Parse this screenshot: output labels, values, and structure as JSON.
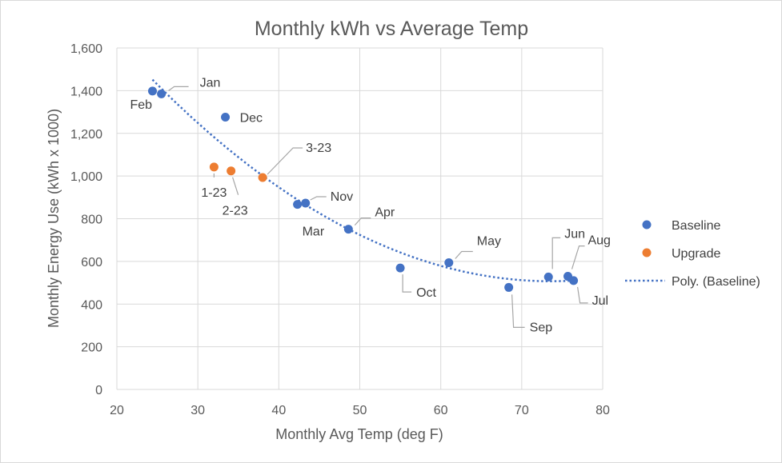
{
  "chart_data": {
    "type": "scatter",
    "title": "Monthly kWh vs Average Temp",
    "xlabel": "Monthly Avg Temp (deg F)",
    "ylabel": "Monthly Energy Use (kWh x 1000)",
    "xlim": [
      20,
      80
    ],
    "ylim": [
      0,
      1600
    ],
    "x_ticks": [
      20,
      30,
      40,
      50,
      60,
      70,
      80
    ],
    "y_ticks": [
      0,
      200,
      400,
      600,
      800,
      1000,
      1200,
      1400,
      1600
    ],
    "y_tick_labels": [
      "0",
      "200",
      "400",
      "600",
      "800",
      "1,000",
      "1,200",
      "1,400",
      "1,600"
    ],
    "grid": true,
    "legend_position": "right",
    "series": [
      {
        "name": "Baseline",
        "color": "#4472c4",
        "points": [
          {
            "label": "Jan",
            "x": 25.5,
            "y": 1385
          },
          {
            "label": "Feb",
            "x": 24.4,
            "y": 1398
          },
          {
            "label": "Mar",
            "x": 42.3,
            "y": 867
          },
          {
            "label": "Apr",
            "x": 48.6,
            "y": 751
          },
          {
            "label": "May",
            "x": 61.0,
            "y": 594
          },
          {
            "label": "Jun",
            "x": 73.3,
            "y": 527
          },
          {
            "label": "Jul",
            "x": 76.4,
            "y": 510
          },
          {
            "label": "Aug",
            "x": 75.7,
            "y": 530
          },
          {
            "label": "Sep",
            "x": 68.4,
            "y": 478
          },
          {
            "label": "Oct",
            "x": 55.0,
            "y": 569
          },
          {
            "label": "Nov",
            "x": 43.3,
            "y": 873
          },
          {
            "label": "Dec",
            "x": 33.4,
            "y": 1276
          }
        ]
      },
      {
        "name": "Upgrade",
        "color": "#ed7d31",
        "points": [
          {
            "label": "1-23",
            "x": 32.0,
            "y": 1042
          },
          {
            "label": "2-23",
            "x": 34.1,
            "y": 1024
          },
          {
            "label": "3-23",
            "x": 38.0,
            "y": 993
          }
        ]
      }
    ],
    "trendline": {
      "name": "Poly. (Baseline)",
      "type": "polynomial",
      "color": "#4472c4",
      "x_range": [
        24.4,
        76.4
      ]
    }
  }
}
